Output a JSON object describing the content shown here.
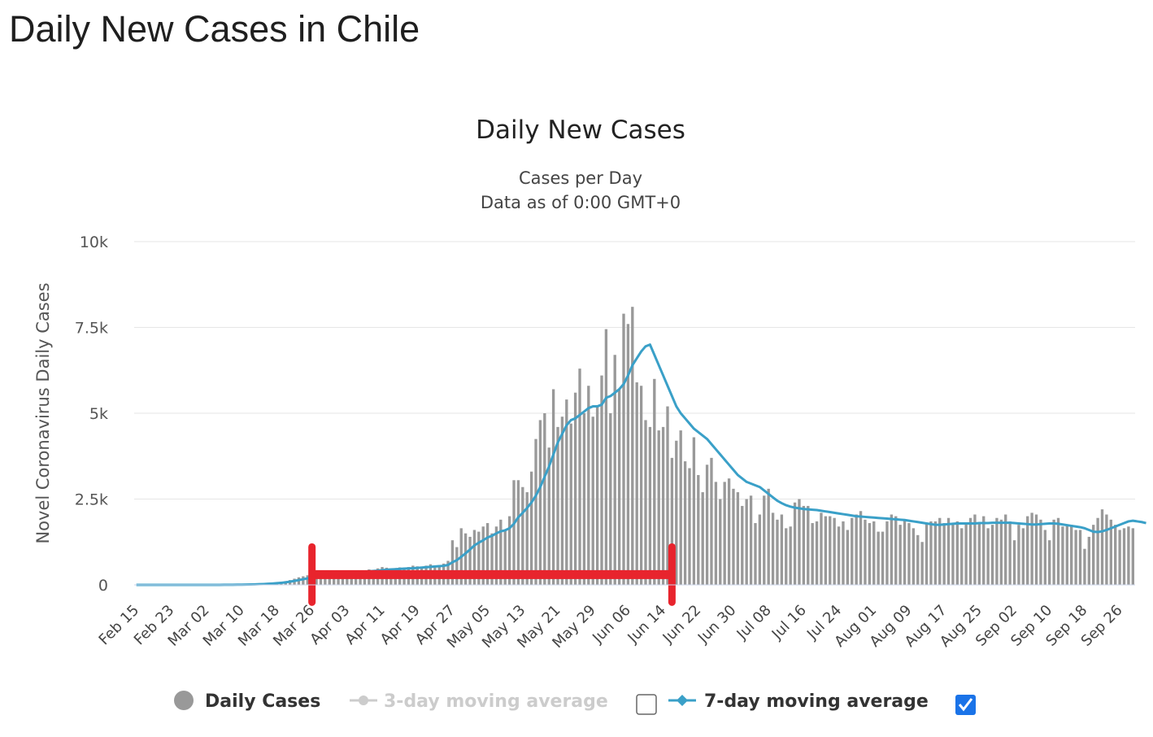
{
  "page": {
    "title": "Daily New Cases in Chile"
  },
  "legend": {
    "items": [
      {
        "label": "Daily Cases",
        "state": "active",
        "color": "#999999"
      },
      {
        "label": "3-day moving average",
        "state": "hidden",
        "color": "#cccccc",
        "checkbox_checked": false
      },
      {
        "label": "7-day moving average",
        "state": "active",
        "color": "#3aa0c8",
        "checkbox_checked": true
      }
    ]
  },
  "annotation": {
    "type": "red-range-bracket",
    "color": "#e8242d",
    "x_start": "Mar 26",
    "x_end": "Jun 16",
    "y_value": 300
  },
  "chart_data": {
    "type": "bar",
    "title": "Daily New Cases",
    "subtitle": [
      "Cases per Day",
      "Data as of 0:00 GMT+0"
    ],
    "xlabel": "",
    "ylabel": "Novel Coronavirus Daily Cases",
    "ylim": [
      0,
      10000
    ],
    "yticks": [
      0,
      2500,
      5000,
      7500,
      10000
    ],
    "ytick_labels": [
      "0",
      "2.5k",
      "5k",
      "7.5k",
      "10k"
    ],
    "grid": true,
    "legend_position": "bottom-center",
    "x_start": "Feb 15",
    "x_end": "Oct 01",
    "xtick_labels": [
      "Feb 15",
      "Feb 23",
      "Mar 02",
      "Mar 10",
      "Mar 18",
      "Mar 26",
      "Apr 03",
      "Apr 11",
      "Apr 19",
      "Apr 27",
      "May 05",
      "May 13",
      "May 21",
      "May 29",
      "Jun 06",
      "Jun 14",
      "Jun 22",
      "Jun 30",
      "Jul 08",
      "Jul 16",
      "Jul 24",
      "Aug 01",
      "Aug 09",
      "Aug 17",
      "Aug 25",
      "Sep 02",
      "Sep 10",
      "Sep 18",
      "Sep 26"
    ],
    "series": [
      {
        "name": "Daily Cases",
        "color": "#999999",
        "values": [
          0,
          0,
          0,
          0,
          0,
          0,
          0,
          0,
          0,
          0,
          0,
          0,
          0,
          0,
          0,
          0,
          0,
          0,
          1,
          2,
          3,
          4,
          6,
          8,
          10,
          14,
          20,
          25,
          30,
          40,
          50,
          60,
          75,
          95,
          110,
          140,
          180,
          220,
          250,
          280,
          300,
          320,
          310,
          330,
          350,
          370,
          360,
          350,
          380,
          400,
          420,
          380,
          410,
          450,
          430,
          480,
          520,
          500,
          460,
          490,
          510,
          480,
          520,
          560,
          540,
          500,
          560,
          600,
          560,
          580,
          620,
          700,
          1300,
          1100,
          1650,
          1500,
          1400,
          1600,
          1550,
          1700,
          1800,
          1500,
          1700,
          1900,
          1600,
          2000,
          3050,
          3050,
          2850,
          2700,
          3300,
          4250,
          4800,
          5000,
          4000,
          5700,
          4600,
          4900,
          5400,
          4700,
          5600,
          6300,
          5000,
          5800,
          4900,
          5200,
          6100,
          7450,
          5000,
          6700,
          5700,
          7900,
          7600,
          8100,
          5900,
          5800,
          4800,
          4600,
          6000,
          4500,
          4600,
          5200,
          3700,
          4200,
          4500,
          3600,
          3400,
          4300,
          3200,
          2700,
          3500,
          3700,
          3000,
          2500,
          3000,
          3100,
          2800,
          2700,
          2300,
          2500,
          2600,
          1800,
          2050,
          2600,
          2800,
          2100,
          1900,
          2050,
          1650,
          1700,
          2400,
          2500,
          2300,
          2300,
          1800,
          1850,
          2100,
          2000,
          2000,
          1950,
          1700,
          1850,
          1600,
          1950,
          2050,
          2150,
          1900,
          1800,
          1850,
          1550,
          1550,
          1850,
          2050,
          2000,
          1750,
          1900,
          1800,
          1650,
          1450,
          1250,
          1800,
          1850,
          1850,
          1950,
          1800,
          1950,
          1800,
          1850,
          1650,
          1800,
          1950,
          2050,
          1800,
          2000,
          1650,
          1750,
          1950,
          1900,
          2050,
          1850,
          1300,
          1750,
          1650,
          2000,
          2100,
          2050,
          1900,
          1600,
          1300,
          1900,
          1950,
          1700,
          1750,
          1750,
          1600,
          1600,
          1050,
          1400,
          1750,
          1950,
          2200,
          2050,
          1900,
          1750,
          1600,
          1650,
          1700,
          1650
        ]
      },
      {
        "name": "7-day moving average",
        "color": "#3aa0c8",
        "values": [
          0,
          0,
          0,
          0,
          0,
          0,
          0,
          0,
          0,
          0,
          0,
          0,
          0,
          0,
          0,
          0,
          0,
          0,
          0,
          1,
          2,
          3,
          4,
          5,
          7,
          9,
          12,
          16,
          20,
          25,
          32,
          40,
          50,
          60,
          75,
          95,
          115,
          140,
          165,
          190,
          215,
          245,
          270,
          290,
          305,
          320,
          330,
          340,
          350,
          360,
          370,
          375,
          385,
          395,
          405,
          415,
          430,
          440,
          450,
          455,
          465,
          475,
          480,
          485,
          495,
          505,
          515,
          525,
          535,
          545,
          555,
          580,
          660,
          720,
          820,
          920,
          1030,
          1150,
          1230,
          1300,
          1380,
          1430,
          1500,
          1560,
          1590,
          1650,
          1780,
          1970,
          2100,
          2240,
          2400,
          2600,
          2850,
          3150,
          3450,
          3800,
          4150,
          4400,
          4650,
          4800,
          4850,
          4950,
          5050,
          5150,
          5200,
          5200,
          5250,
          5450,
          5500,
          5600,
          5700,
          5850,
          6100,
          6400,
          6600,
          6800,
          6950,
          7000,
          6700,
          6400,
          6100,
          5800,
          5500,
          5200,
          5000,
          4850,
          4700,
          4550,
          4450,
          4350,
          4250,
          4100,
          3950,
          3800,
          3650,
          3500,
          3350,
          3200,
          3100,
          3000,
          2950,
          2900,
          2850,
          2750,
          2650,
          2550,
          2450,
          2380,
          2320,
          2280,
          2250,
          2230,
          2210,
          2200,
          2190,
          2180,
          2160,
          2140,
          2120,
          2100,
          2080,
          2060,
          2040,
          2020,
          2000,
          1990,
          1980,
          1970,
          1960,
          1950,
          1940,
          1930,
          1920,
          1910,
          1900,
          1890,
          1870,
          1850,
          1830,
          1810,
          1790,
          1770,
          1750,
          1750,
          1760,
          1770,
          1780,
          1790,
          1790,
          1790,
          1790,
          1790,
          1800,
          1800,
          1800,
          1810,
          1810,
          1810,
          1810,
          1810,
          1800,
          1790,
          1780,
          1770,
          1760,
          1760,
          1770,
          1780,
          1790,
          1790,
          1780,
          1760,
          1740,
          1720,
          1700,
          1680,
          1650,
          1600,
          1550,
          1540,
          1560,
          1600,
          1650,
          1700,
          1750,
          1800,
          1850,
          1870,
          1850,
          1830,
          1800
        ]
      }
    ]
  }
}
